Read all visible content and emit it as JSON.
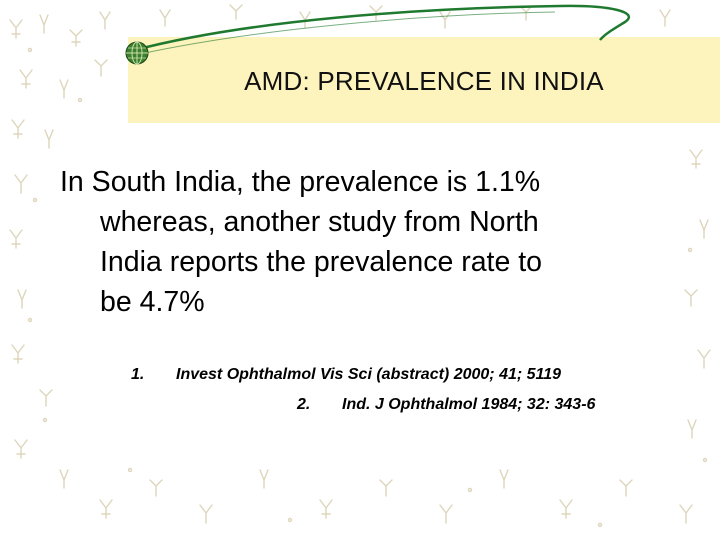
{
  "slide": {
    "title": "AMD: PREVALENCE IN INDIA",
    "body": {
      "line1": "In South India, the prevalence is 1.1%",
      "line2": "whereas, another study from North",
      "line3": "India reports the prevalence rate to",
      "line4": "be 4.7%"
    },
    "references": [
      {
        "number": "1.",
        "text": "Invest Ophthalmol Vis Sci (abstract) 2000; 41; 5119"
      },
      {
        "number": "2.",
        "text": "Ind. J Ophthalmol 1984; 32: 343-6"
      }
    ]
  },
  "colors": {
    "title_band": "#fcf3bd",
    "curve": "#1f7a2f",
    "globe": "#2a6e2a",
    "pattern": "#d9d2b6"
  }
}
